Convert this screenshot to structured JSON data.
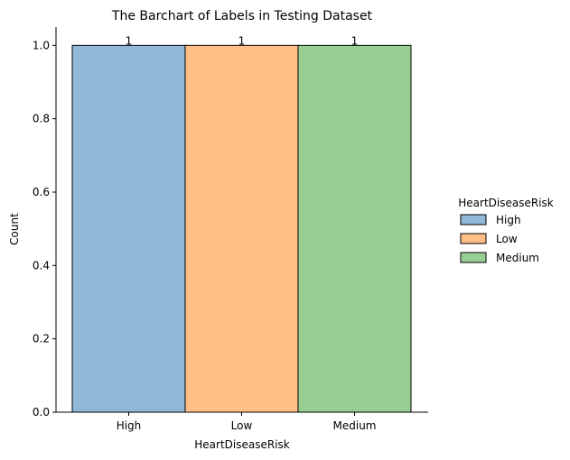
{
  "chart_data": {
    "type": "bar",
    "title": "The Barchart of Labels in Testing Dataset",
    "xlabel": "HeartDiseaseRisk",
    "ylabel": "Count",
    "categories": [
      "High",
      "Low",
      "Medium"
    ],
    "values": [
      1,
      1,
      1
    ],
    "data_labels": [
      "1",
      "1",
      "1"
    ],
    "ylim": [
      0,
      1.05
    ],
    "yticks": [
      0.0,
      0.2,
      0.4,
      0.6,
      0.8,
      1.0
    ],
    "ytick_labels": [
      "0.0",
      "0.2",
      "0.4",
      "0.6",
      "0.8",
      "1.0"
    ],
    "grid": false,
    "colors": [
      "#8fb8d9",
      "#ffbf87",
      "#97cf93"
    ],
    "legend": {
      "title": "HeartDiseaseRisk",
      "position": "right",
      "entries": [
        "High",
        "Low",
        "Medium"
      ]
    }
  }
}
